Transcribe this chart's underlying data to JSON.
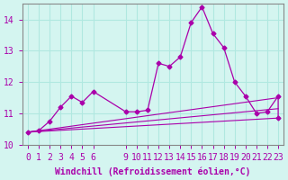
{
  "xlabel": "Windchill (Refroidissement éolien,°C)",
  "background_color": "#d4f5f0",
  "line_color": "#aa00aa",
  "x_ticks": [
    0,
    1,
    2,
    3,
    4,
    5,
    6,
    9,
    10,
    11,
    12,
    13,
    14,
    15,
    16,
    17,
    18,
    19,
    20,
    21,
    22,
    23
  ],
  "ylim": [
    10.0,
    14.5
  ],
  "xlim": [
    -0.5,
    23.5
  ],
  "main_y": [
    10.4,
    10.45,
    10.75,
    11.2,
    11.55,
    11.35,
    11.7,
    11.05,
    11.05,
    11.1,
    12.6,
    12.5,
    12.8,
    13.9,
    14.4,
    13.55,
    13.1,
    12.0,
    11.55,
    11.0,
    11.05,
    11.55,
    10.85
  ],
  "main_x": [
    0,
    1,
    2,
    3,
    4,
    5,
    6,
    9,
    10,
    11,
    12,
    13,
    14,
    15,
    16,
    17,
    18,
    19,
    20,
    21,
    22,
    23,
    23
  ],
  "line1_x": [
    0,
    23
  ],
  "line1_y": [
    10.4,
    10.85
  ],
  "line2_x": [
    0,
    23
  ],
  "line2_y": [
    10.4,
    11.15
  ],
  "line3_x": [
    0,
    23
  ],
  "line3_y": [
    10.4,
    11.5
  ],
  "yticks": [
    10,
    11,
    12,
    13,
    14
  ],
  "grid_color": "#b0e8e0",
  "tick_fontsize": 7,
  "label_fontsize": 7
}
